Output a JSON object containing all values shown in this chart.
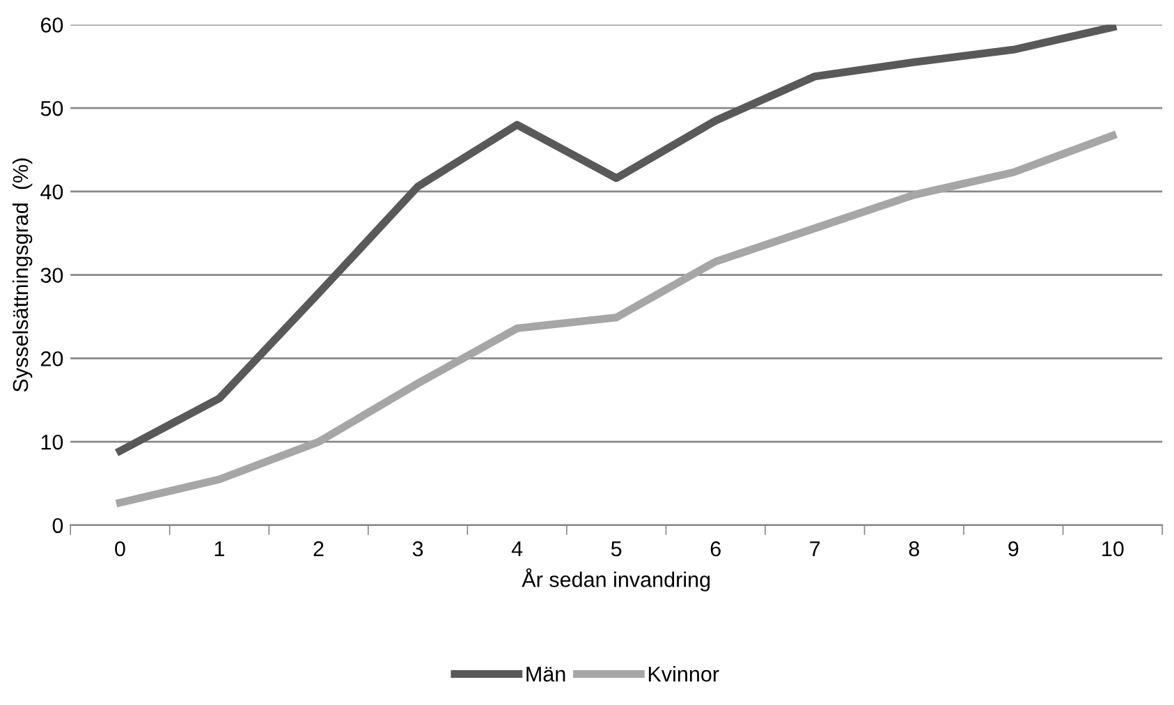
{
  "chart_data": {
    "type": "line",
    "xlabel": "År sedan invandring",
    "ylabel": "Sysselsättningsgrad  (%)",
    "categories": [
      "0",
      "1",
      "2",
      "3",
      "4",
      "5",
      "6",
      "7",
      "8",
      "9",
      "10"
    ],
    "series": [
      {
        "name": "Män",
        "color": "#595959",
        "values": [
          8.9,
          15.2,
          27.8,
          40.6,
          48.0,
          41.6,
          48.5,
          53.8,
          55.5,
          57.0,
          59.7
        ]
      },
      {
        "name": "Kvinnor",
        "color": "#a6a6a6",
        "values": [
          2.7,
          5.5,
          10.0,
          17.0,
          23.6,
          24.9,
          31.6,
          35.6,
          39.6,
          42.3,
          46.7
        ]
      }
    ],
    "ylim": [
      0,
      60
    ],
    "yticks": [
      0,
      10,
      20,
      30,
      40,
      50,
      60
    ],
    "grid": "y",
    "legend": "bottom",
    "marker": "none",
    "line_style": "solid"
  }
}
